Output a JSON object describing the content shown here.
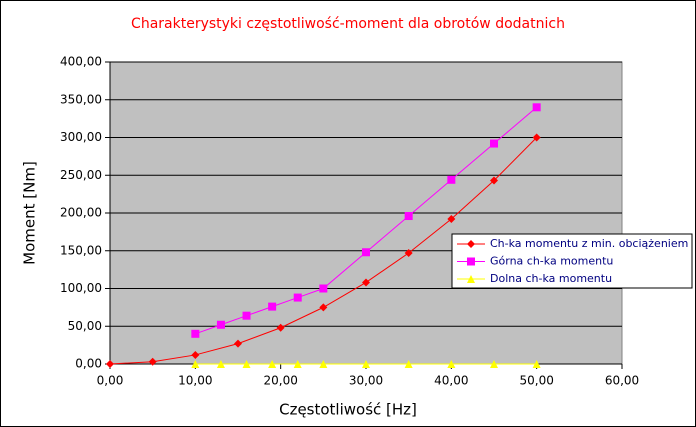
{
  "chart_data": {
    "type": "scatter-line",
    "title": "Charakterystyki częstotliwość-moment dla obrotów dodatnich",
    "x_label": "Częstotliwość [Hz]",
    "y_label": "Moment [Nm]",
    "xlim": [
      0,
      60
    ],
    "ylim": [
      0,
      400
    ],
    "xticks": [
      {
        "value": 0,
        "label": "0,00"
      },
      {
        "value": 10,
        "label": "10,00"
      },
      {
        "value": 20,
        "label": "20,00"
      },
      {
        "value": 30,
        "label": "30,00"
      },
      {
        "value": 40,
        "label": "40,00"
      },
      {
        "value": 50,
        "label": "50,00"
      },
      {
        "value": 60,
        "label": "60,00"
      }
    ],
    "yticks": [
      {
        "value": 0,
        "label": "0,00"
      },
      {
        "value": 50,
        "label": "50,00"
      },
      {
        "value": 100,
        "label": "100,00"
      },
      {
        "value": 150,
        "label": "150,00"
      },
      {
        "value": 200,
        "label": "200,00"
      },
      {
        "value": 250,
        "label": "250,00"
      },
      {
        "value": 300,
        "label": "300,00"
      },
      {
        "value": 350,
        "label": "350,00"
      },
      {
        "value": 400,
        "label": "400,00"
      }
    ],
    "grid": true,
    "plot_background": "#c0c0c0",
    "legend": "right",
    "series": [
      {
        "name": "Ch-ka momentu z min. obciążeniem",
        "color": "#ff0000",
        "marker": "diamond",
        "x": [
          0,
          5,
          10,
          15,
          20,
          25,
          30,
          35,
          40,
          45,
          50
        ],
        "values": [
          0,
          3,
          12,
          27,
          48,
          75,
          108,
          147,
          192,
          243,
          300
        ]
      },
      {
        "name": "Górna ch-ka momentu",
        "color": "#ff00ff",
        "marker": "square",
        "x": [
          10,
          13,
          16,
          19,
          22,
          25,
          30,
          35,
          40,
          45,
          50
        ],
        "values": [
          40,
          52,
          64,
          76,
          88,
          100,
          148,
          196,
          244,
          292,
          340
        ]
      },
      {
        "name": "Dolna ch-ka momentu",
        "color": "#ffff00",
        "marker": "triangle",
        "x": [
          10,
          13,
          16,
          19,
          22,
          25,
          30,
          35,
          40,
          45,
          50
        ],
        "values": [
          0,
          0,
          0,
          0,
          0,
          0,
          0,
          0,
          0,
          0,
          0
        ]
      }
    ]
  }
}
